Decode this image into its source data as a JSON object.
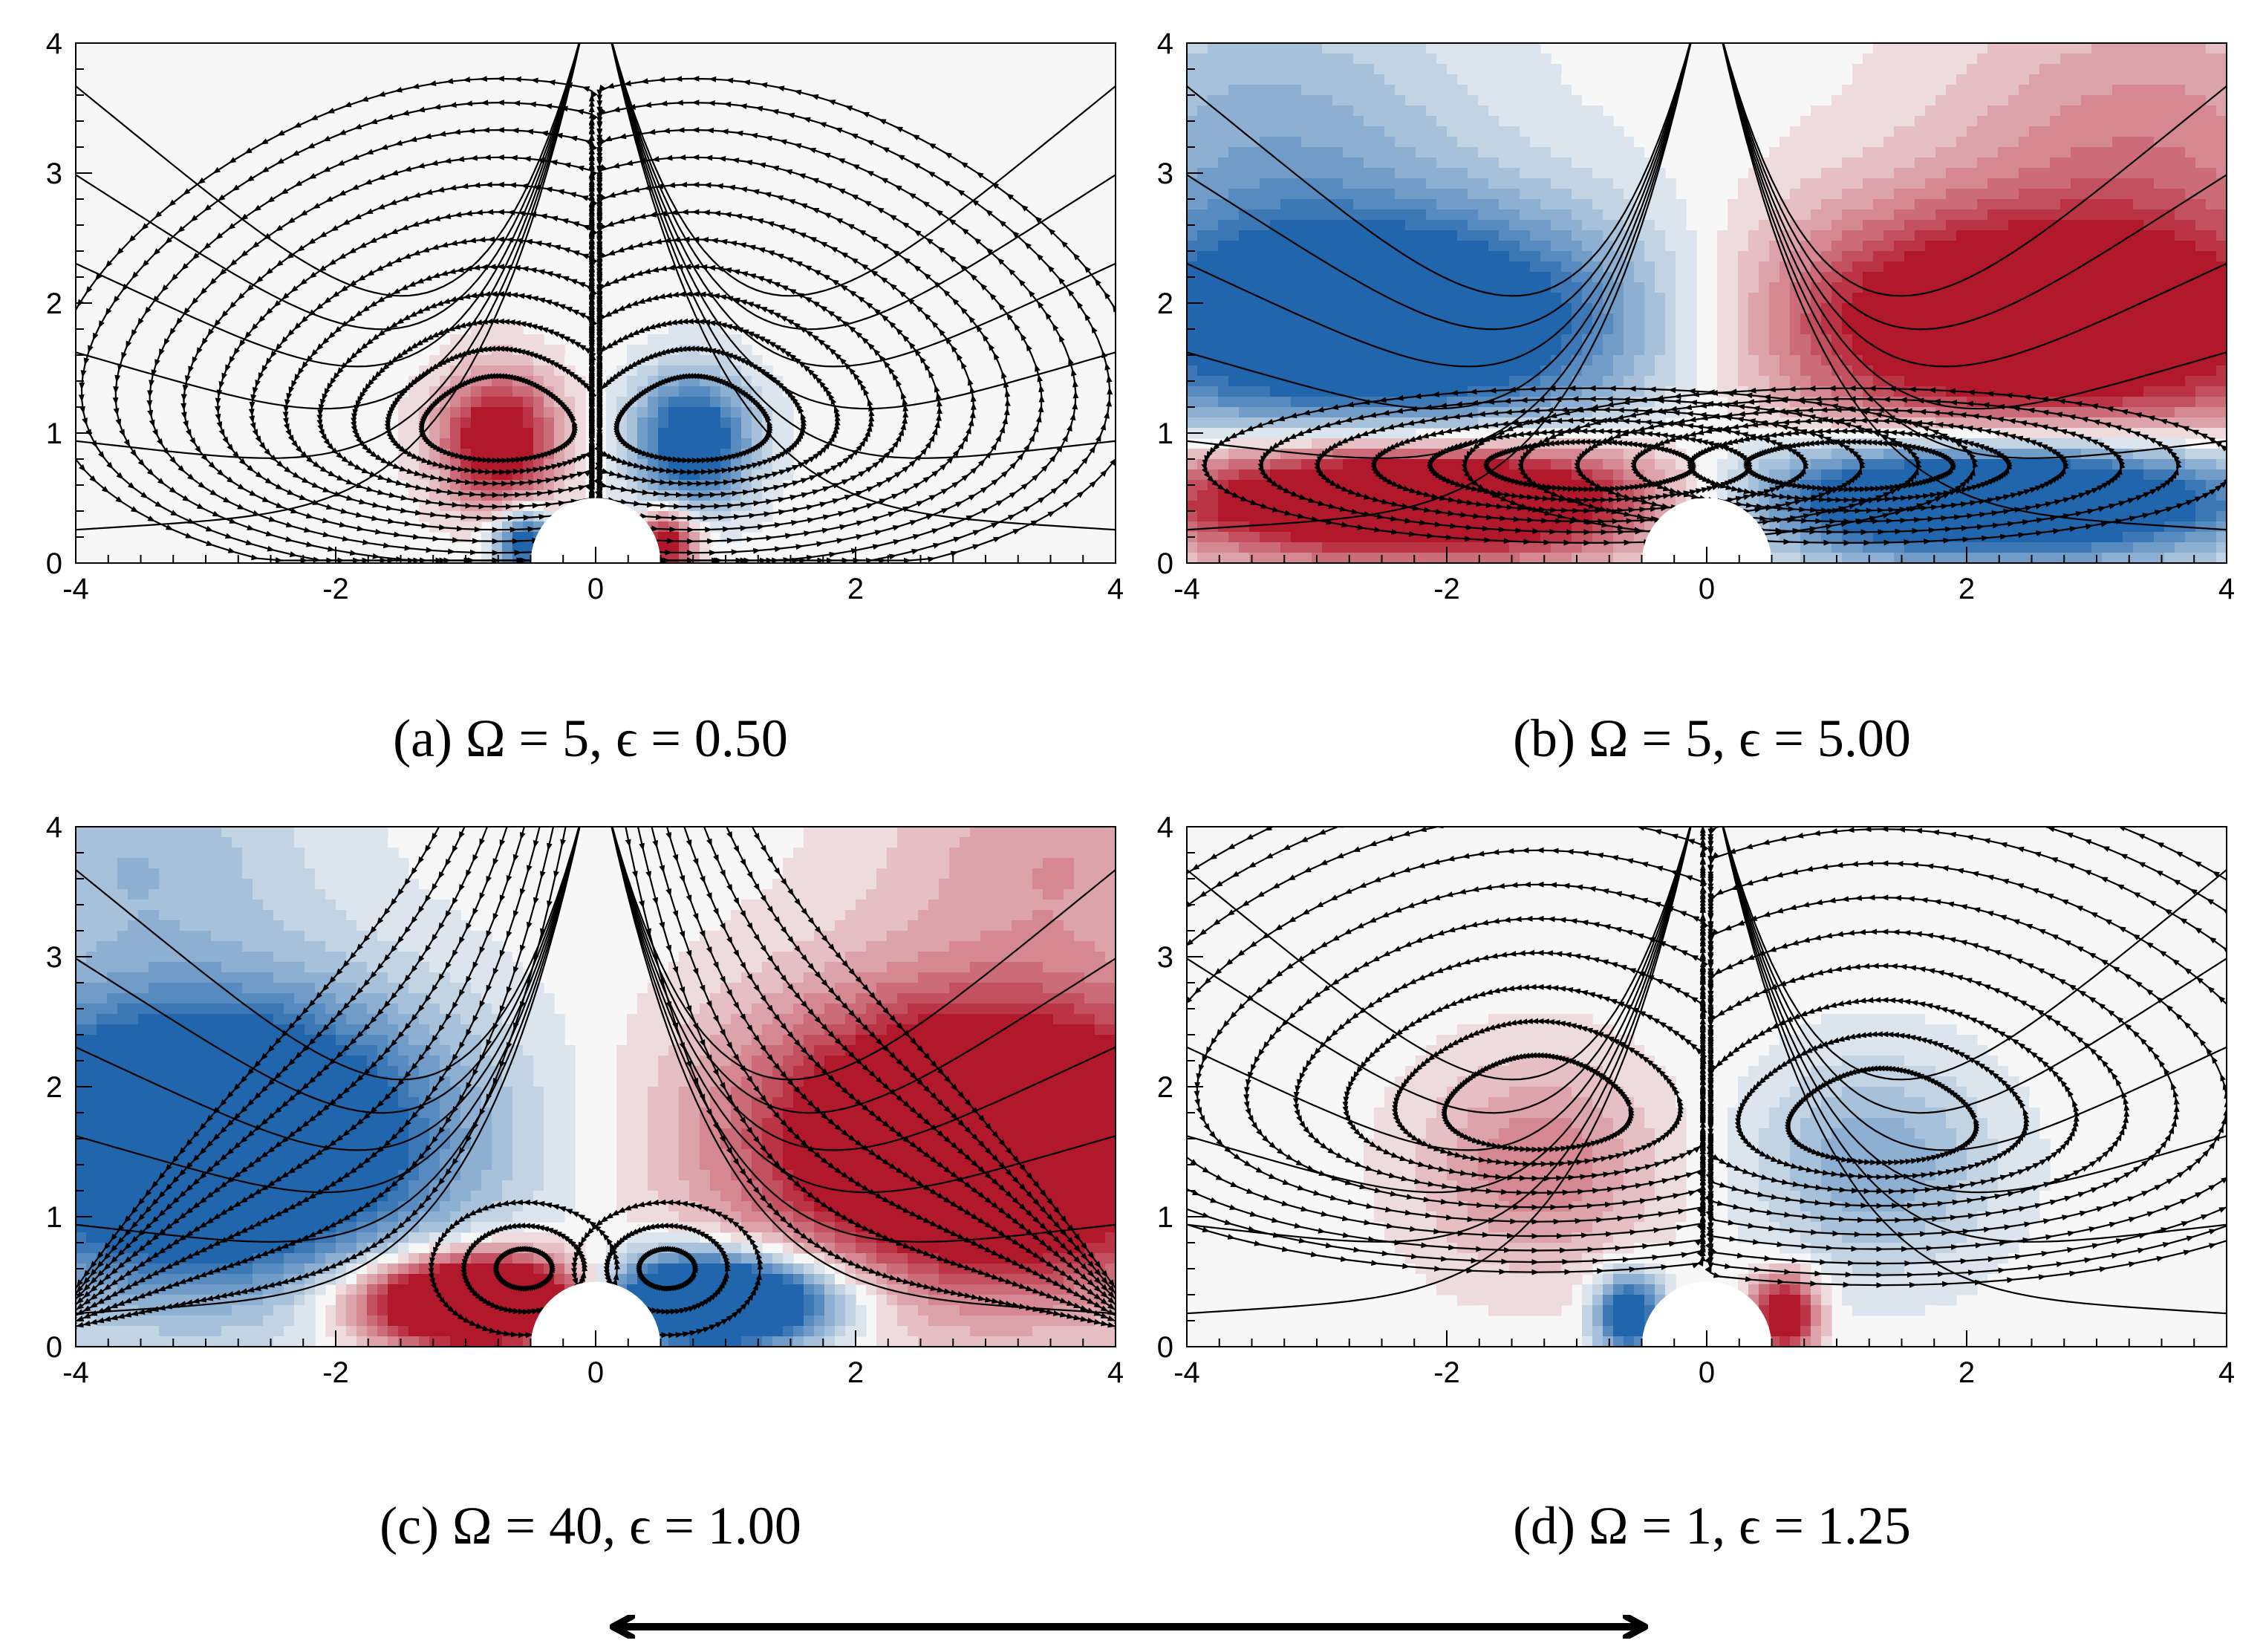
{
  "colors": {
    "positive": "#b2182b",
    "negative": "#2166ac",
    "neutral": "#f7f7f7",
    "streamline": "#000000"
  },
  "chart_data": [
    {
      "type": "contour",
      "panel": "a",
      "title": "(a) Ω = 5,  ϵ = 0.50",
      "xlim": [
        -4,
        4
      ],
      "ylim": [
        0,
        4
      ],
      "xticks": [
        -4,
        -2,
        0,
        2,
        4
      ],
      "yticks": [
        0,
        1,
        2,
        3,
        4
      ],
      "xtick_labels": [
        "-4",
        "-2",
        "0",
        "2",
        "4"
      ],
      "ytick_labels": [
        "0",
        "1",
        "2",
        "3",
        "4"
      ],
      "sphere_radius": 0.5,
      "vortices": [
        {
          "x": -0.75,
          "y": 1.0,
          "sign": 1
        },
        {
          "x": 0.75,
          "y": 1.0,
          "sign": -1
        }
      ],
      "field": [
        {
          "x": -0.75,
          "y": 0.95,
          "sx": 0.45,
          "sy": 0.5,
          "a": 1.3
        },
        {
          "x": 0.75,
          "y": 0.95,
          "sx": 0.45,
          "sy": 0.5,
          "a": -1.3
        },
        {
          "x": -0.55,
          "y": 0.15,
          "sx": 0.22,
          "sy": 0.25,
          "a": -1.2
        },
        {
          "x": 0.55,
          "y": 0.15,
          "sx": 0.22,
          "sy": 0.25,
          "a": 1.2
        }
      ],
      "streamline_family": "loops",
      "stream_levels": [
        0.1,
        0.18,
        0.26,
        0.34,
        0.42,
        0.5,
        0.58,
        0.66,
        0.74,
        0.82,
        0.9,
        0.97
      ]
    },
    {
      "type": "contour",
      "panel": "b",
      "title": "(b) Ω = 5,   ϵ = 5.00",
      "xlim": [
        -4,
        4
      ],
      "ylim": [
        0,
        4
      ],
      "xticks": [
        -4,
        -2,
        0,
        2,
        4
      ],
      "yticks": [
        0,
        1,
        2,
        3,
        4
      ],
      "xtick_labels": [
        "-4",
        "-2",
        "0",
        "2",
        "4"
      ],
      "ytick_labels": [
        "0",
        "1",
        "2",
        "3",
        "4"
      ],
      "sphere_radius": 0.5,
      "vortices": [
        {
          "x": -0.9,
          "y": 0.75,
          "sign": 1
        },
        {
          "x": 1.1,
          "y": 0.75,
          "sign": -1
        }
      ],
      "field": [
        {
          "x": -2.2,
          "y": 0.5,
          "sx": 2.0,
          "sy": 0.45,
          "a": 2.0
        },
        {
          "x": 2.2,
          "y": 0.5,
          "sx": 2.0,
          "sy": 0.45,
          "a": -2.0
        },
        {
          "x": -2.5,
          "y": 1.85,
          "sx": 2.3,
          "sy": 0.9,
          "a": -1.6
        },
        {
          "x": 2.5,
          "y": 1.85,
          "sx": 2.3,
          "sy": 0.9,
          "a": 1.6
        },
        {
          "x": -3.4,
          "y": 3.4,
          "sx": 1.6,
          "sy": 1.0,
          "a": -0.45
        },
        {
          "x": 3.4,
          "y": 3.4,
          "sx": 1.6,
          "sy": 1.0,
          "a": 0.45
        }
      ],
      "streamline_family": "flattened",
      "stream_levels": [
        0.15,
        0.3,
        0.45,
        0.6,
        0.75,
        0.9
      ]
    },
    {
      "type": "contour",
      "panel": "c",
      "title": "(c) Ω = 40,  ϵ = 1.00",
      "xlim": [
        -4,
        4
      ],
      "ylim": [
        0,
        4
      ],
      "xticks": [
        -4,
        -2,
        0,
        2,
        4
      ],
      "yticks": [
        0,
        1,
        2,
        3,
        4
      ],
      "xtick_labels": [
        "-4",
        "-2",
        "0",
        "2",
        "4"
      ],
      "ytick_labels": [
        "0",
        "1",
        "2",
        "3",
        "4"
      ],
      "sphere_radius": 0.5,
      "vortices": [
        {
          "x": -0.55,
          "y": 0.6,
          "sign": 1
        },
        {
          "x": 0.55,
          "y": 0.6,
          "sign": -1
        }
      ],
      "field": [
        {
          "x": -3.0,
          "y": 1.6,
          "sx": 1.8,
          "sy": 1.1,
          "a": -2.0
        },
        {
          "x": 3.0,
          "y": 1.6,
          "sx": 1.8,
          "sy": 1.1,
          "a": 2.0
        },
        {
          "x": -0.9,
          "y": 0.35,
          "sx": 0.9,
          "sy": 0.35,
          "a": 2.4
        },
        {
          "x": 0.9,
          "y": 0.35,
          "sx": 0.9,
          "sy": 0.35,
          "a": -2.4
        },
        {
          "x": -3.6,
          "y": 3.8,
          "sx": 1.4,
          "sy": 0.8,
          "a": -0.4
        },
        {
          "x": 3.6,
          "y": 3.8,
          "sx": 1.4,
          "sy": 0.8,
          "a": 0.4
        }
      ],
      "streamline_family": "swirl",
      "stream_levels": [
        0.3,
        0.6,
        0.9,
        1.2,
        1.5,
        1.8,
        2.1,
        2.4,
        2.7,
        3.0,
        3.3
      ]
    },
    {
      "type": "contour",
      "panel": "d",
      "title": "(d) Ω = 1,   ϵ = 1.25",
      "xlim": [
        -4,
        4
      ],
      "ylim": [
        0,
        4
      ],
      "xticks": [
        -4,
        -2,
        0,
        2,
        4
      ],
      "yticks": [
        0,
        1,
        2,
        3,
        4
      ],
      "xtick_labels": [
        "-4",
        "-2",
        "0",
        "2",
        "4"
      ],
      "ytick_labels": [
        "0",
        "1",
        "2",
        "3",
        "4"
      ],
      "sphere_radius": 0.5,
      "vortices": [
        {
          "x": -1.3,
          "y": 1.75,
          "sign": 1
        },
        {
          "x": 1.35,
          "y": 1.65,
          "sign": -1
        }
      ],
      "field": [
        {
          "x": -1.3,
          "y": 1.4,
          "sx": 0.9,
          "sy": 0.8,
          "a": 0.55
        },
        {
          "x": 1.3,
          "y": 1.4,
          "sx": 0.9,
          "sy": 0.8,
          "a": -0.55
        },
        {
          "x": -0.6,
          "y": 0.25,
          "sx": 0.25,
          "sy": 0.3,
          "a": -1.4
        },
        {
          "x": 0.6,
          "y": 0.25,
          "sx": 0.25,
          "sy": 0.3,
          "a": 1.4
        }
      ],
      "streamline_family": "loops",
      "stream_levels": [
        0.12,
        0.22,
        0.32,
        0.42,
        0.52,
        0.62,
        0.72,
        0.82,
        0.9,
        0.97
      ]
    }
  ]
}
